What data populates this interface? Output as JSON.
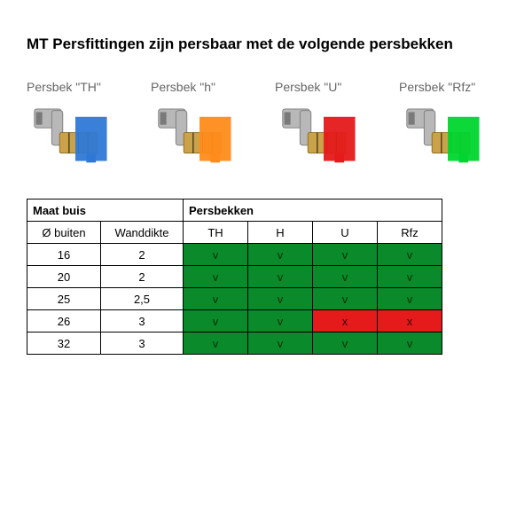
{
  "title": "MT Persfittingen zijn persbaar met de volgende persbekken",
  "fittings": [
    {
      "label": "Persbek \"TH\"",
      "color": "#2f79d6"
    },
    {
      "label": "Persbek \"h\"",
      "color": "#ff8c1a"
    },
    {
      "label": "Persbek \"U\"",
      "color": "#e51a1a"
    },
    {
      "label": "Persbek \"Rfz\"",
      "color": "#00d62f"
    }
  ],
  "table": {
    "header_group_left": "Maat buis",
    "header_group_right": "Persbekken",
    "col_diam": "Ø buiten",
    "col_wall": "Wanddikte",
    "jaw_cols": [
      "TH",
      "H",
      "U",
      "Rfz"
    ],
    "rows": [
      {
        "diam": "16",
        "wall": "2",
        "cells": [
          "v",
          "v",
          "v",
          "v"
        ],
        "status": [
          "ok",
          "ok",
          "ok",
          "ok"
        ]
      },
      {
        "diam": "20",
        "wall": "2",
        "cells": [
          "v",
          "v",
          "v",
          "v"
        ],
        "status": [
          "ok",
          "ok",
          "ok",
          "ok"
        ]
      },
      {
        "diam": "25",
        "wall": "2,5",
        "cells": [
          "v",
          "v",
          "v",
          "v"
        ],
        "status": [
          "ok",
          "ok",
          "ok",
          "ok"
        ]
      },
      {
        "diam": "26",
        "wall": "3",
        "cells": [
          "v",
          "v",
          "x",
          "x"
        ],
        "status": [
          "ok",
          "ok",
          "bad",
          "bad"
        ]
      },
      {
        "diam": "32",
        "wall": "3",
        "cells": [
          "v",
          "v",
          "v",
          "v"
        ],
        "status": [
          "ok",
          "ok",
          "ok",
          "ok"
        ]
      }
    ]
  },
  "colors": {
    "ok_bg": "#0a8a2a",
    "bad_bg": "#e51a1a",
    "label_grey": "#666666",
    "brass": "#c9a24a",
    "brass_dark": "#8a6a20",
    "steel": "#b8b8b8",
    "steel_dark": "#7a7a7a"
  }
}
